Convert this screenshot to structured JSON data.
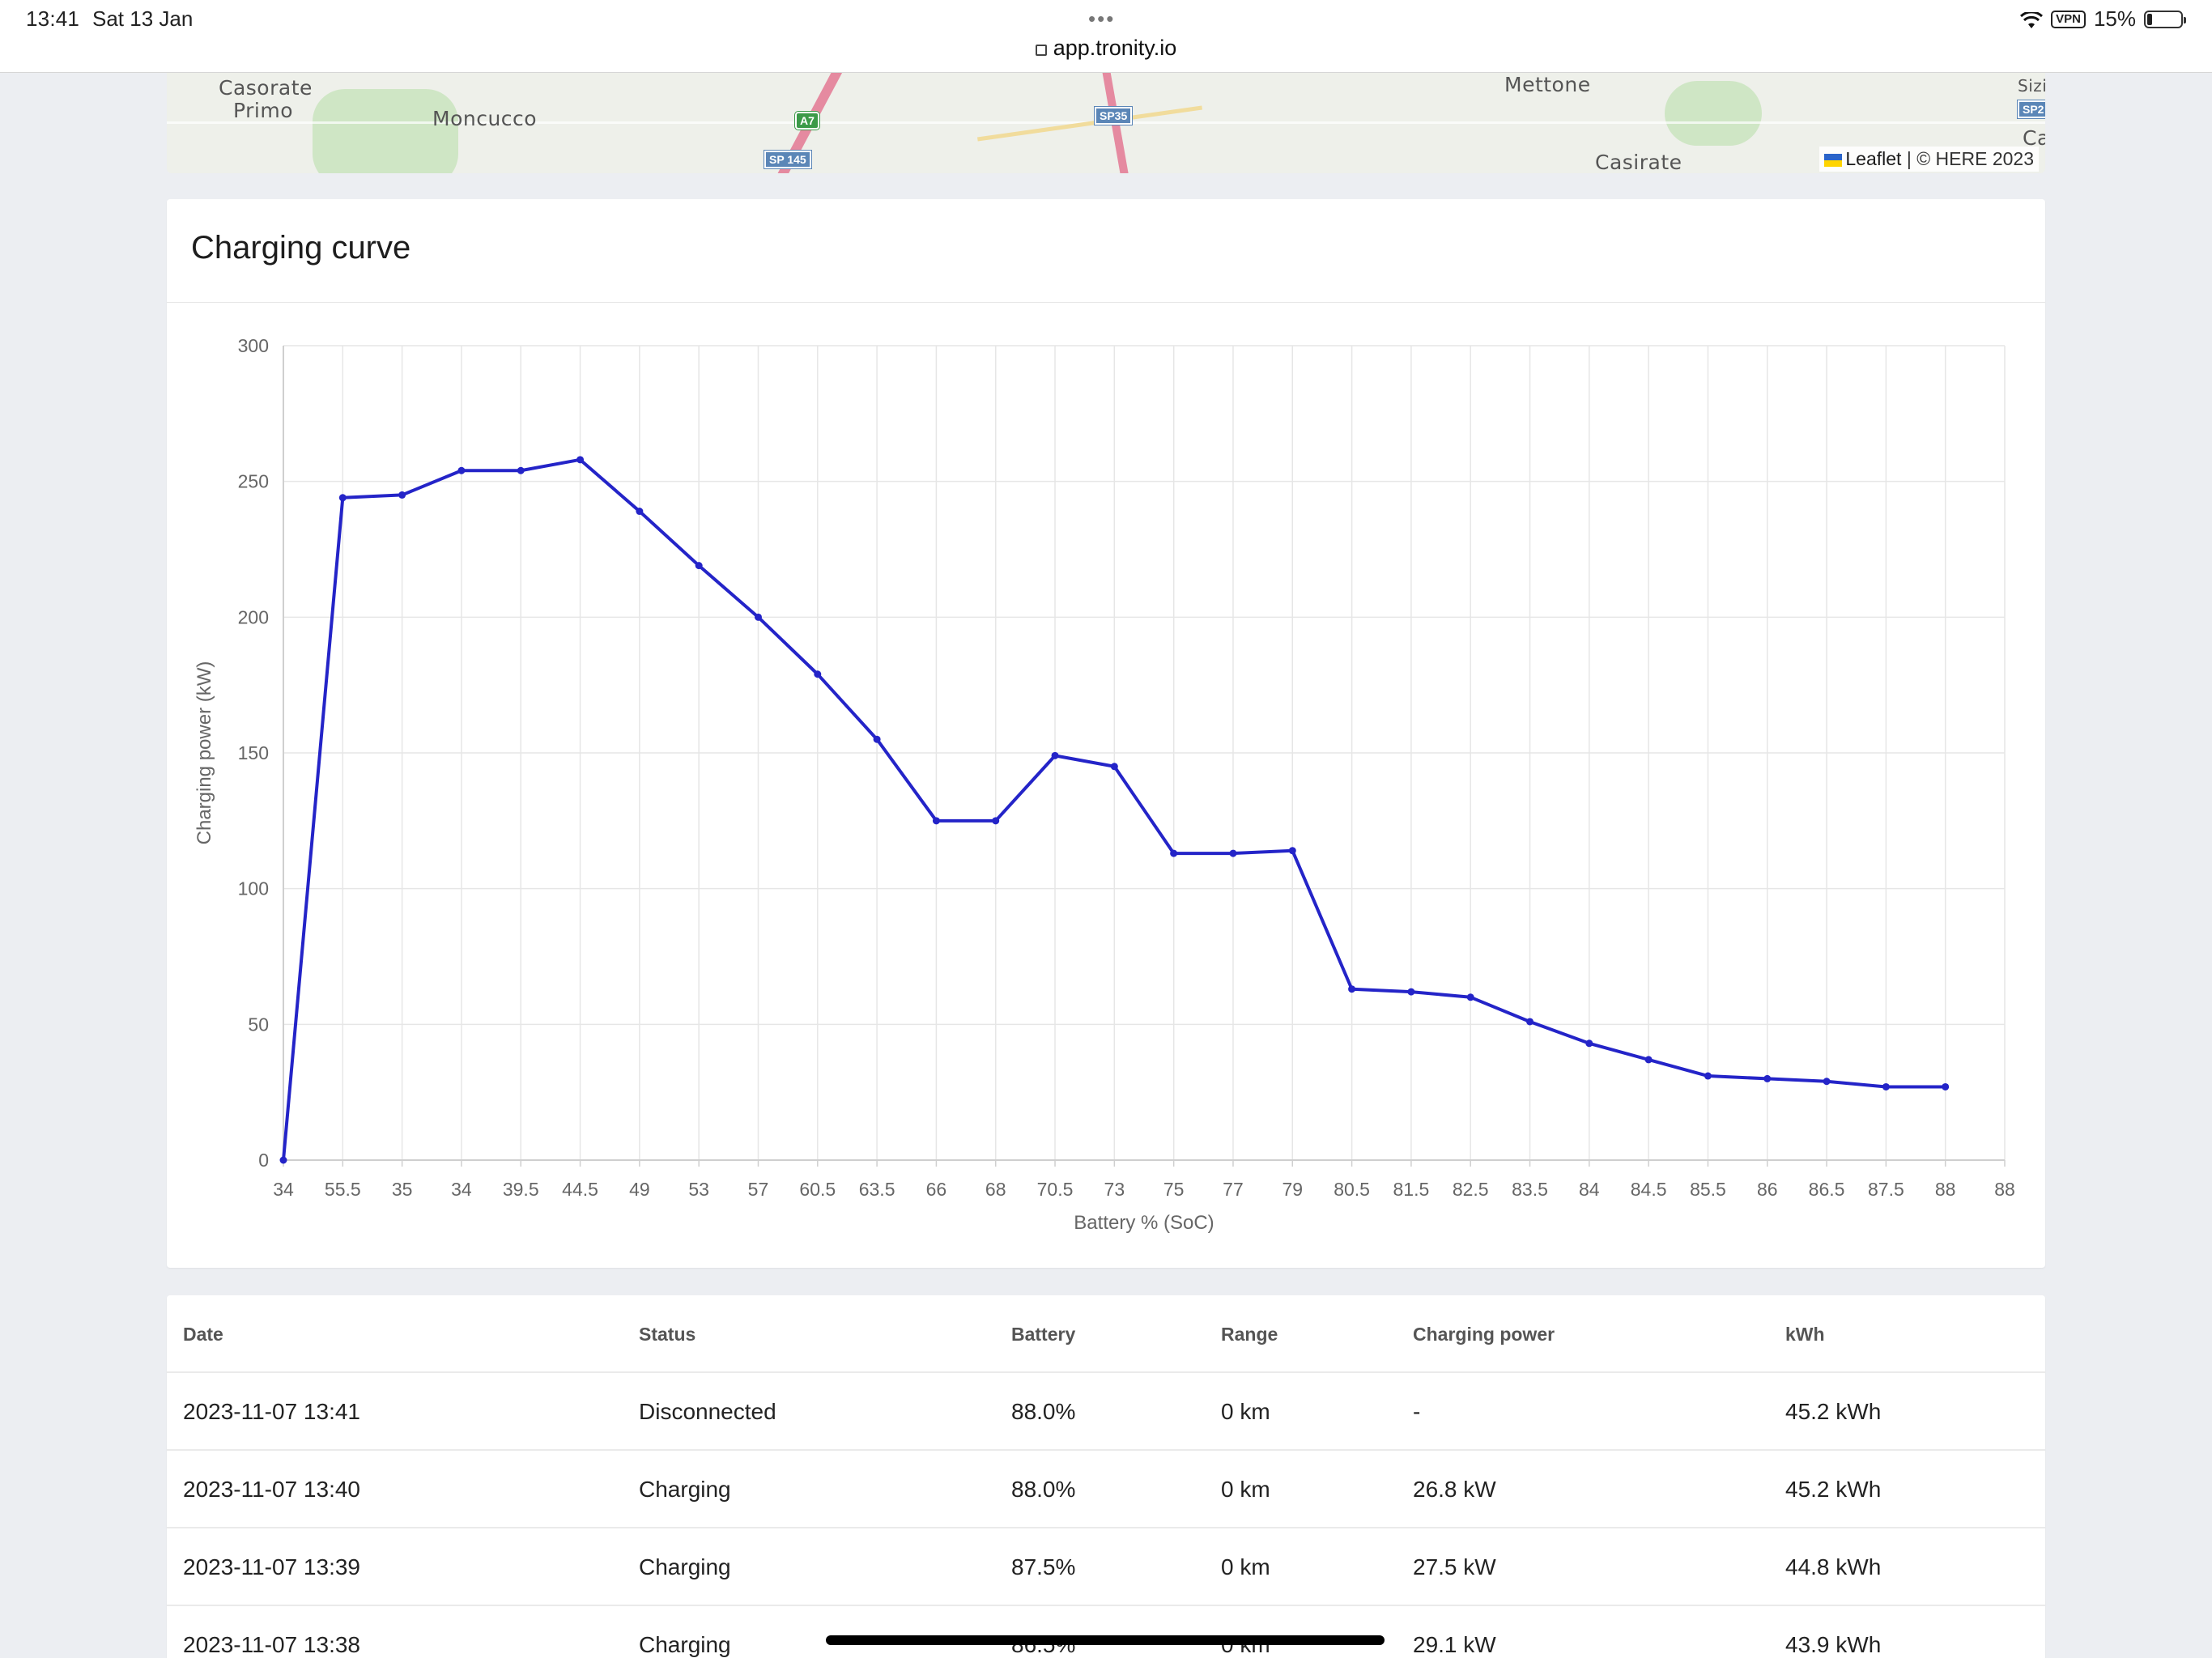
{
  "status_bar": {
    "time": "13:41",
    "date": "Sat 13 Jan",
    "dots": "•••",
    "vpn": "VPN",
    "battery_pct": "15%",
    "battery_level": 0.15
  },
  "browser": {
    "url": "app.tronity.io"
  },
  "map": {
    "towns": [
      "Casorate",
      "Primo",
      "Moncucco",
      "Mettone",
      "Casirate",
      "Sizi",
      "Ca"
    ],
    "shields": [
      "A7",
      "SP 145",
      "SP35",
      "SP2"
    ],
    "attribution_leaflet": "Leaflet",
    "attribution_sep": " | ",
    "attribution_here": "© HERE 2023",
    "colors": {
      "road": "#e58aa0",
      "shield_blue": "#5b86b7",
      "shield_green": "#3b9a48",
      "park": "#cfe6c5"
    }
  },
  "chart_card": {
    "title": "Charging curve"
  },
  "chart_data": {
    "type": "line",
    "title": "",
    "xlabel": "Battery % (SoC)",
    "ylabel": "Charging power (kW)",
    "ylim": [
      0,
      300
    ],
    "yticks": [
      0,
      50,
      100,
      150,
      200,
      250,
      300
    ],
    "categories": [
      "34",
      "55.5",
      "35",
      "34",
      "39.5",
      "44.5",
      "49",
      "53",
      "57",
      "60.5",
      "63.5",
      "66",
      "68",
      "70.5",
      "73",
      "75",
      "77",
      "79",
      "80.5",
      "81.5",
      "82.5",
      "83.5",
      "84",
      "84.5",
      "85.5",
      "86",
      "86.5",
      "87.5",
      "88",
      "88"
    ],
    "series": [
      {
        "color": "#2424c8",
        "values": [
          0,
          244,
          245,
          254,
          254,
          258,
          239,
          219,
          200,
          179,
          155,
          125,
          125,
          149,
          145,
          113,
          113,
          114,
          63,
          62,
          60,
          51,
          43,
          37,
          31,
          30,
          29,
          27,
          27,
          null
        ]
      }
    ],
    "grid": true
  },
  "table": {
    "headers": [
      "Date",
      "Status",
      "Battery",
      "Range",
      "Charging power",
      "kWh"
    ],
    "rows": [
      [
        "2023-11-07 13:41",
        "Disconnected",
        "88.0%",
        "0 km",
        "-",
        "45.2 kWh"
      ],
      [
        "2023-11-07 13:40",
        "Charging",
        "88.0%",
        "0 km",
        "26.8 kW",
        "45.2 kWh"
      ],
      [
        "2023-11-07 13:39",
        "Charging",
        "87.5%",
        "0 km",
        "27.5 kW",
        "44.8 kWh"
      ],
      [
        "2023-11-07 13:38",
        "Charging",
        "86.5%",
        "0 km",
        "29.1 kW",
        "43.9 kWh"
      ]
    ]
  }
}
